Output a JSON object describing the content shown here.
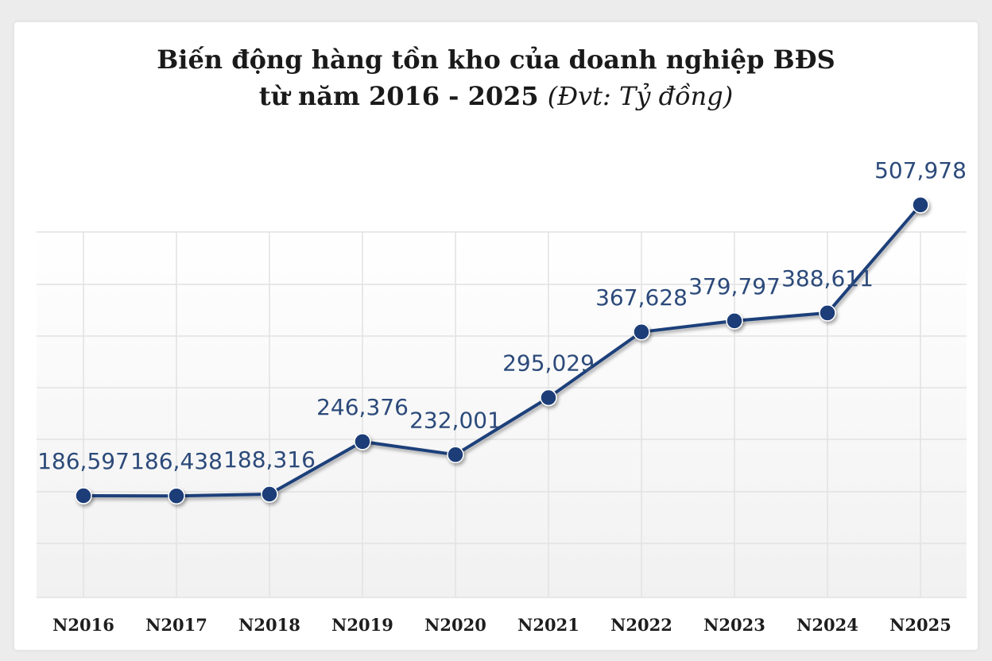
{
  "chart_data": {
    "type": "line",
    "title_line1": "Biến động hàng tồn kho của doanh nghiệp BĐS",
    "title_line2": "từ năm 2016 - 2025",
    "unit_note": "(Đvt: Tỷ đồng)",
    "categories": [
      "N2016",
      "N2017",
      "N2018",
      "N2019",
      "N2020",
      "N2021",
      "N2022",
      "N2023",
      "N2024",
      "N2025"
    ],
    "values": [
      186597,
      186438,
      188316,
      246376,
      232001,
      295029,
      367628,
      379797,
      388611,
      507978
    ],
    "value_labels": [
      "186,597",
      "186,438",
      "188,316",
      "246,376",
      "232,001",
      "295,029",
      "367,628",
      "379,797",
      "388,611",
      "507,978"
    ],
    "grid": true,
    "legend": "none",
    "colors": {
      "line": "#1f3f7a",
      "marker": "#1b3c78",
      "label": "#2c4a7a",
      "grid": "#e2e2e2"
    }
  }
}
